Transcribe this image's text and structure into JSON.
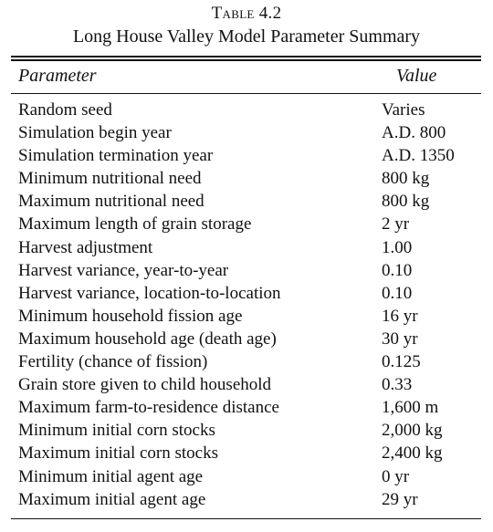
{
  "caption": {
    "label": "Table 4.2",
    "title": "Long House Valley Model Parameter Summary"
  },
  "table": {
    "headers": {
      "parameter": "Parameter",
      "value": "Value"
    },
    "rows": [
      {
        "parameter": "Random seed",
        "value": "Varies"
      },
      {
        "parameter": "Simulation begin year",
        "value": "A.D. 800"
      },
      {
        "parameter": "Simulation termination year",
        "value": "A.D. 1350"
      },
      {
        "parameter": "Minimum nutritional need",
        "value": "800 kg"
      },
      {
        "parameter": "Maximum nutritional need",
        "value": "800 kg"
      },
      {
        "parameter": "Maximum length of grain storage",
        "value": "2 yr"
      },
      {
        "parameter": "Harvest adjustment",
        "value": "1.00"
      },
      {
        "parameter": "Harvest variance, year-to-year",
        "value": "0.10"
      },
      {
        "parameter": "Harvest variance, location-to-location",
        "value": "0.10"
      },
      {
        "parameter": "Minimum household fission age",
        "value": "16 yr"
      },
      {
        "parameter": "Maximum household age (death age)",
        "value": "30 yr"
      },
      {
        "parameter": "Fertility (chance of fission)",
        "value": "0.125"
      },
      {
        "parameter": "Grain store given to child household",
        "value": "0.33"
      },
      {
        "parameter": "Maximum farm-to-residence distance",
        "value": "1,600 m"
      },
      {
        "parameter": "Minimum initial corn stocks",
        "value": "2,000 kg"
      },
      {
        "parameter": "Maximum initial corn stocks",
        "value": "2,400 kg"
      },
      {
        "parameter": "Minimum initial agent age",
        "value": "0 yr"
      },
      {
        "parameter": "Maximum initial agent age",
        "value": "29 yr"
      }
    ]
  }
}
